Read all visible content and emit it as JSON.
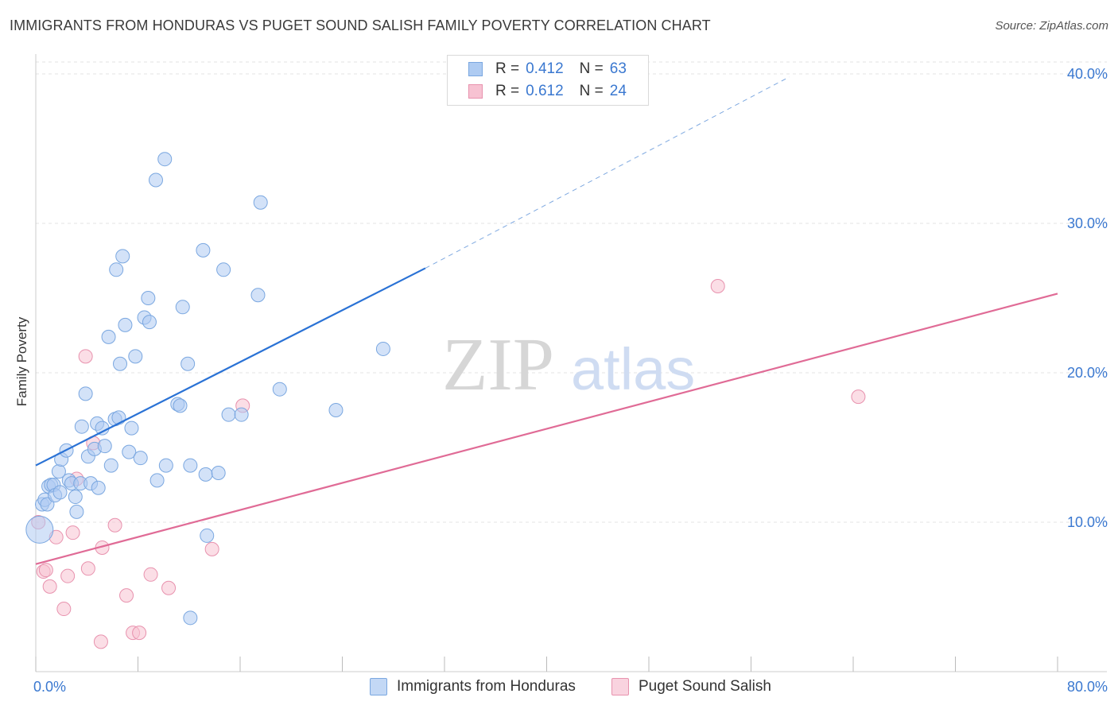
{
  "header": {
    "title": "IMMIGRANTS FROM HONDURAS VS PUGET SOUND SALISH FAMILY POVERTY CORRELATION CHART",
    "source": "Source: ZipAtlas.com"
  },
  "watermark": {
    "zip": "ZIP",
    "atlas": "atlas"
  },
  "legend_top": [
    {
      "r_label": "R =",
      "r_value": "0.412",
      "n_label": "N =",
      "n_value": "63"
    },
    {
      "r_label": "R =",
      "r_value": "0.612",
      "n_label": "N =",
      "n_value": "24"
    }
  ],
  "colors": {
    "blue_fill": "#aecbf2",
    "blue_stroke": "#7aa7e0",
    "blue_line": "#2a72d5",
    "pink_fill": "#f7c2d2",
    "pink_stroke": "#e892ae",
    "pink_line": "#e06b96",
    "grid": "#e3e3e3",
    "tick_text": "#3a78d0"
  },
  "chart_data": {
    "type": "scatter",
    "title": "IMMIGRANTS FROM HONDURAS VS PUGET SOUND SALISH FAMILY POVERTY CORRELATION CHART",
    "xlabel": "",
    "ylabel": "Family Poverty",
    "xlim": [
      0,
      80
    ],
    "ylim": [
      0,
      40.8
    ],
    "x_tick_labels": [
      "0.0%",
      "80.0%"
    ],
    "y_ticks": [
      10,
      20,
      30,
      40
    ],
    "y_tick_labels": [
      "10.0%",
      "20.0%",
      "30.0%",
      "40.0%"
    ],
    "legend": [
      "Immigrants from Honduras",
      "Puget Sound Salish"
    ],
    "series": [
      {
        "name": "Immigrants from Honduras",
        "r": 0.412,
        "n": 63,
        "trend": {
          "x0": 0,
          "y0": 13.8,
          "x1": 30.5,
          "y1": 27.0,
          "dash_to_x": 59,
          "dash_to_y": 39.8
        },
        "points": [
          [
            0.3,
            9.5
          ],
          [
            0.5,
            11.2
          ],
          [
            0.7,
            11.5
          ],
          [
            0.9,
            11.2
          ],
          [
            1.0,
            12.4
          ],
          [
            1.2,
            12.5
          ],
          [
            1.4,
            12.5
          ],
          [
            1.5,
            11.8
          ],
          [
            1.8,
            13.4
          ],
          [
            1.9,
            12.0
          ],
          [
            2.0,
            14.2
          ],
          [
            2.4,
            14.8
          ],
          [
            2.6,
            12.8
          ],
          [
            2.8,
            12.6
          ],
          [
            3.1,
            11.7
          ],
          [
            3.2,
            10.7
          ],
          [
            3.5,
            12.6
          ],
          [
            3.6,
            16.4
          ],
          [
            3.9,
            18.6
          ],
          [
            4.1,
            14.4
          ],
          [
            4.3,
            12.6
          ],
          [
            4.6,
            14.9
          ],
          [
            4.8,
            16.6
          ],
          [
            4.9,
            12.3
          ],
          [
            5.2,
            16.3
          ],
          [
            5.4,
            15.1
          ],
          [
            5.7,
            22.4
          ],
          [
            5.9,
            13.8
          ],
          [
            6.2,
            16.9
          ],
          [
            6.3,
            26.9
          ],
          [
            6.5,
            17.0
          ],
          [
            6.6,
            20.6
          ],
          [
            6.8,
            27.8
          ],
          [
            7.0,
            23.2
          ],
          [
            7.3,
            14.7
          ],
          [
            7.5,
            16.3
          ],
          [
            7.8,
            21.1
          ],
          [
            8.2,
            14.3
          ],
          [
            8.5,
            23.7
          ],
          [
            8.8,
            25.0
          ],
          [
            8.9,
            23.4
          ],
          [
            9.4,
            32.9
          ],
          [
            9.5,
            12.8
          ],
          [
            10.1,
            34.3
          ],
          [
            10.2,
            13.8
          ],
          [
            11.1,
            17.9
          ],
          [
            11.3,
            17.8
          ],
          [
            11.5,
            24.4
          ],
          [
            11.9,
            20.6
          ],
          [
            12.1,
            13.8
          ],
          [
            12.1,
            3.6
          ],
          [
            13.1,
            28.2
          ],
          [
            13.3,
            13.2
          ],
          [
            13.4,
            9.1
          ],
          [
            14.3,
            13.3
          ],
          [
            14.7,
            26.9
          ],
          [
            15.1,
            17.2
          ],
          [
            16.1,
            17.2
          ],
          [
            17.4,
            25.2
          ],
          [
            17.6,
            31.4
          ],
          [
            19.1,
            18.9
          ],
          [
            23.5,
            17.5
          ],
          [
            27.2,
            21.6
          ]
        ]
      },
      {
        "name": "Puget Sound Salish",
        "r": 0.612,
        "n": 24,
        "trend": {
          "x0": 0,
          "y0": 7.2,
          "x1": 80,
          "y1": 25.3
        },
        "points": [
          [
            0.2,
            10.0
          ],
          [
            0.6,
            6.7
          ],
          [
            0.8,
            6.8
          ],
          [
            1.1,
            5.7
          ],
          [
            1.6,
            9.0
          ],
          [
            2.2,
            4.2
          ],
          [
            2.5,
            6.4
          ],
          [
            2.9,
            9.3
          ],
          [
            3.2,
            12.9
          ],
          [
            3.9,
            21.1
          ],
          [
            4.1,
            6.9
          ],
          [
            4.5,
            15.3
          ],
          [
            5.1,
            2.0
          ],
          [
            5.2,
            8.3
          ],
          [
            6.2,
            9.8
          ],
          [
            7.1,
            5.1
          ],
          [
            7.6,
            2.6
          ],
          [
            8.1,
            2.6
          ],
          [
            9.0,
            6.5
          ],
          [
            10.4,
            5.6
          ],
          [
            13.8,
            8.2
          ],
          [
            16.2,
            17.8
          ],
          [
            53.4,
            25.8
          ],
          [
            64.4,
            18.4
          ]
        ]
      }
    ]
  }
}
